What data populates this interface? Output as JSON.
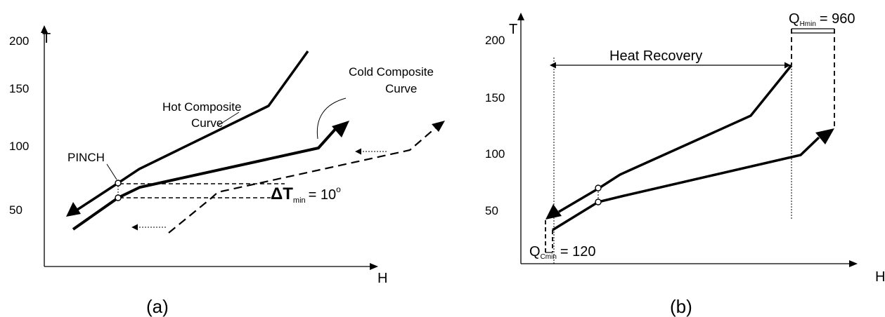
{
  "panel_a": {
    "y_axis_label": "T",
    "x_axis_label": "H",
    "y_ticks": [
      "200",
      "150",
      "100",
      "50"
    ],
    "hot_curve_label_line1": "Hot Composite",
    "hot_curve_label_line2": "Curve",
    "cold_curve_label_line1": "Cold Composite",
    "cold_curve_label_line2": "Curve",
    "pinch_label": "PINCH",
    "delta_symbol": "ΔT",
    "delta_subscript": "min",
    "delta_value": "= 10",
    "delta_superscript": "o",
    "caption": "(a)"
  },
  "panel_b": {
    "y_axis_label": "T",
    "x_axis_label": "H",
    "y_ticks": [
      "200",
      "150",
      "100",
      "50"
    ],
    "heat_recovery_label": "Heat Recovery",
    "qh_symbol": "Q",
    "qh_subscript": "Hmin",
    "qh_value": "= 960",
    "qc_symbol": "Q",
    "qc_subscript": "Cmin",
    "qc_value": "= 120",
    "caption": "(b)"
  }
}
